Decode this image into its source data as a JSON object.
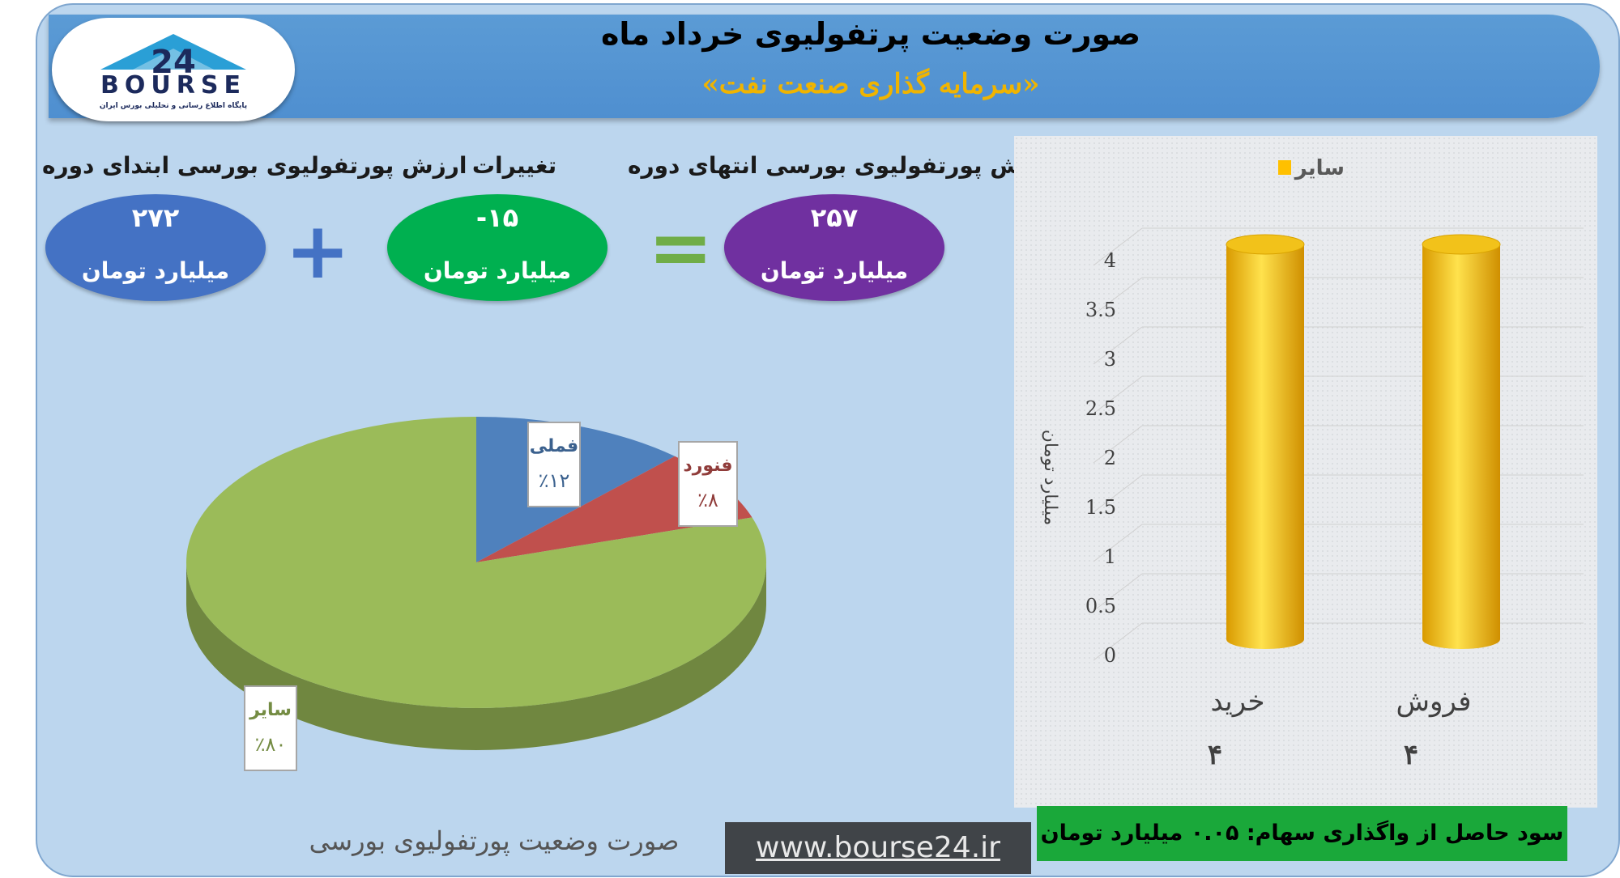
{
  "header": {
    "title": "صورت وضعیت پرتفولیوی خرداد ماه",
    "subtitle": "«سرمایه گذاری صنعت نفت»",
    "logo_text": "BOURSE",
    "logo_number": "24",
    "logo_sub": "پایگاه اطلاع رسانی و تحلیلی بورس ایران"
  },
  "summary": {
    "start": {
      "label": "ارزش پورتفولیوی بورسی ابتدای دوره",
      "value": "۲۷۲",
      "unit": "میلیارد تومان"
    },
    "change": {
      "label": "تغییرات",
      "value": "-۱۵",
      "unit": "میلیارد تومان"
    },
    "end": {
      "label": "ارزش پورتفولیوی بورسی انتهای دوره",
      "value": "۲۵۷",
      "unit": "میلیارد تومان"
    },
    "plus_symbol": "+",
    "equals_symbol": "="
  },
  "colors": {
    "start_ellipse": "#4472c4",
    "change_ellipse": "#00b050",
    "end_ellipse": "#7030a0",
    "plus": "#4472c4",
    "equals": "#70ad47",
    "pie_green": "#9bbb59",
    "pie_blue": "#4f81bd",
    "pie_red": "#c0504d",
    "bar_gold": "#ffc000"
  },
  "chart_data": [
    {
      "type": "pie",
      "title": "صورت وضعیت پورتفولیوی بورسی",
      "slices": [
        {
          "label": "فملی",
          "value": 12,
          "display": "٪۱۲",
          "color": "#4f81bd"
        },
        {
          "label": "فنورد",
          "value": 8,
          "display": "٪۸",
          "color": "#c0504d"
        },
        {
          "label": "سایر",
          "value": 80,
          "display": "٪۸۰",
          "color": "#9bbb59"
        }
      ]
    },
    {
      "type": "bar",
      "categories": [
        "خرید",
        "فروش"
      ],
      "category_values": [
        "۴",
        "۴"
      ],
      "series": [
        {
          "name": "سایر",
          "values": [
            4,
            4
          ],
          "color": "#ffc000"
        }
      ],
      "ylabel": "میلیارد تومان",
      "ylim": [
        0,
        4
      ],
      "yticks": [
        "0",
        "0.5",
        "1",
        "1.5",
        "2",
        "2.5",
        "3",
        "3.5",
        "4"
      ],
      "legend": "top"
    }
  ],
  "footer": {
    "profit_note": "سود حاصل از واگذاری سهام: ۰.۰۵ میلیارد تومان",
    "url": "www.bourse24.ir",
    "caption": "صورت وضعیت پورتفولیوی بورسی"
  }
}
